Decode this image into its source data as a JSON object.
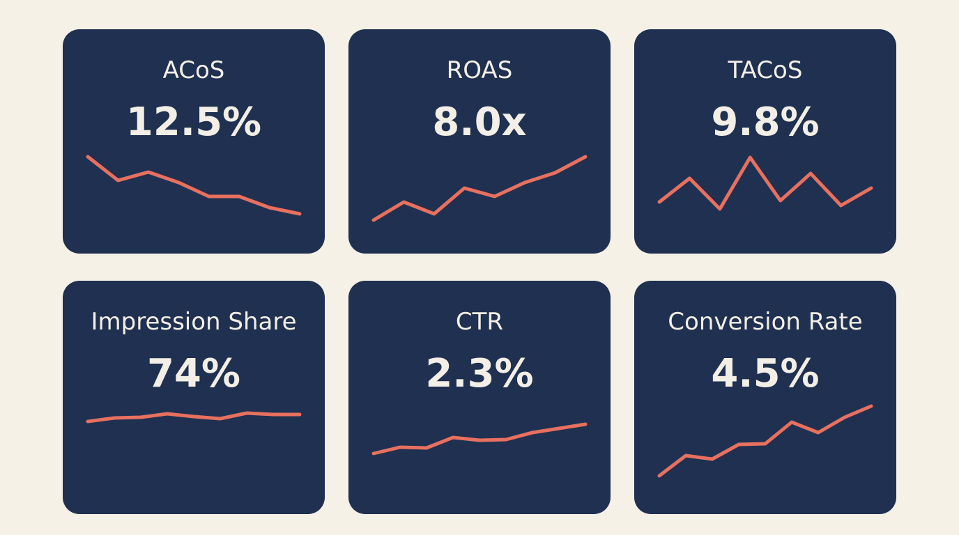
{
  "cards": [
    {
      "title": "ACoS",
      "value": "12.5%",
      "sparkline": {
        "type": "line",
        "color": "#e8705f",
        "ylim": [
          0,
          100
        ],
        "values": [
          97,
          63,
          75,
          60,
          40,
          40,
          24,
          15
        ]
      }
    },
    {
      "title": "ROAS",
      "value": "8.0x",
      "sparkline": {
        "type": "line",
        "color": "#e8705f",
        "ylim": [
          0,
          100
        ],
        "values": [
          6,
          32,
          15,
          52,
          40,
          60,
          74,
          97
        ]
      }
    },
    {
      "title": "TACoS",
      "value": "9.8%",
      "sparkline": {
        "type": "line",
        "color": "#e8705f",
        "ylim": [
          0,
          100
        ],
        "values": [
          32,
          66,
          22,
          96,
          34,
          73,
          27,
          52
        ]
      }
    },
    {
      "title": "Impression Share",
      "value": "74%",
      "sparkline": {
        "type": "line",
        "color": "#e8705f",
        "ylim": [
          0,
          100
        ],
        "values": [
          78,
          83,
          84,
          89,
          85,
          82,
          90,
          88,
          88
        ]
      }
    },
    {
      "title": "CTR",
      "value": "2.3%",
      "sparkline": {
        "type": "line",
        "color": "#e8705f",
        "ylim": [
          0,
          100
        ],
        "values": [
          32,
          41,
          40,
          55,
          51,
          52,
          62,
          68,
          74
        ]
      }
    },
    {
      "title": "Conversion Rate",
      "value": "4.5%",
      "sparkline": {
        "type": "line",
        "color": "#e8705f",
        "ylim": [
          0,
          100
        ],
        "values": [
          0,
          29,
          24,
          45,
          46,
          77,
          62,
          84,
          100
        ]
      }
    }
  ]
}
